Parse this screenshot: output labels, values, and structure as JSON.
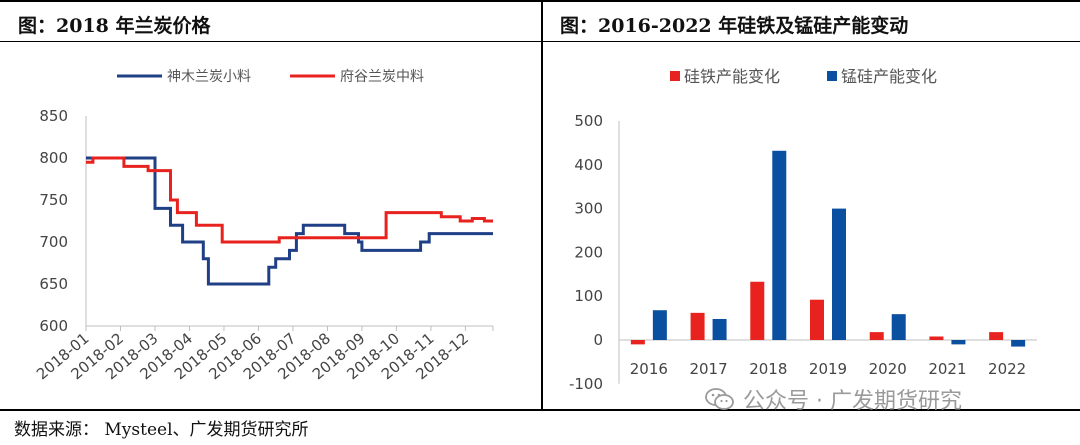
{
  "left_panel": {
    "title": "图：2018 年兰炭价格"
  },
  "right_panel": {
    "title": "图：2016-2022 年硅铁及锰硅产能变动"
  },
  "footer": {
    "source": "数据来源：  Mysteel、广发期货研究所"
  },
  "watermark": {
    "text": "公众号 · 广发期货研究",
    "icon": "wechat-icon"
  },
  "colors": {
    "blue": "#1f3f86",
    "red": "#e8231f",
    "bar_blue": "#0b4fa0",
    "bar_red": "#e8231f"
  },
  "chart_data": [
    {
      "type": "line",
      "title": "图：2018 年兰炭价格",
      "ylim": [
        600,
        850
      ],
      "yticks": [
        600,
        650,
        700,
        750,
        800,
        850
      ],
      "x_range": [
        0,
        11.8
      ],
      "categories": [
        "2018-01",
        "2018-02",
        "2018-03",
        "2018-04",
        "2018-05",
        "2018-06",
        "2018-07",
        "2018-08",
        "2018-09",
        "2018-10",
        "2018-11",
        "2018-12"
      ],
      "legend_position": "top",
      "grid": false,
      "series": [
        {
          "name": "神木兰炭小料",
          "color": "#1f3f86",
          "points": [
            [
              0,
              800
            ],
            [
              1.9,
              800
            ],
            [
              1.9,
              800
            ],
            [
              2.0,
              800
            ],
            [
              2.0,
              740
            ],
            [
              2.45,
              740
            ],
            [
              2.45,
              720
            ],
            [
              2.8,
              720
            ],
            [
              2.8,
              700
            ],
            [
              3.4,
              700
            ],
            [
              3.4,
              680
            ],
            [
              3.55,
              680
            ],
            [
              3.55,
              650
            ],
            [
              5.3,
              650
            ],
            [
              5.3,
              670
            ],
            [
              5.5,
              670
            ],
            [
              5.5,
              680
            ],
            [
              5.9,
              680
            ],
            [
              5.9,
              690
            ],
            [
              6.1,
              690
            ],
            [
              6.1,
              710
            ],
            [
              6.3,
              710
            ],
            [
              6.3,
              720
            ],
            [
              7.5,
              720
            ],
            [
              7.5,
              710
            ],
            [
              7.9,
              710
            ],
            [
              7.9,
              700
            ],
            [
              8.0,
              700
            ],
            [
              8.0,
              690
            ],
            [
              9.7,
              690
            ],
            [
              9.7,
              700
            ],
            [
              9.95,
              700
            ],
            [
              9.95,
              710
            ],
            [
              11.8,
              710
            ]
          ]
        },
        {
          "name": "府谷兰炭中料",
          "color": "#e8231f",
          "points": [
            [
              0,
              795
            ],
            [
              0.2,
              795
            ],
            [
              0.2,
              800
            ],
            [
              1.1,
              800
            ],
            [
              1.1,
              790
            ],
            [
              1.8,
              790
            ],
            [
              1.8,
              785
            ],
            [
              2.45,
              785
            ],
            [
              2.45,
              750
            ],
            [
              2.65,
              750
            ],
            [
              2.65,
              735
            ],
            [
              3.2,
              735
            ],
            [
              3.2,
              720
            ],
            [
              3.95,
              720
            ],
            [
              3.95,
              700
            ],
            [
              5.6,
              700
            ],
            [
              5.6,
              705
            ],
            [
              6.55,
              705
            ],
            [
              6.55,
              705
            ],
            [
              8.7,
              705
            ],
            [
              8.7,
              735
            ],
            [
              10.3,
              735
            ],
            [
              10.3,
              730
            ],
            [
              10.85,
              730
            ],
            [
              10.85,
              725
            ],
            [
              11.2,
              725
            ],
            [
              11.2,
              728
            ],
            [
              11.55,
              728
            ],
            [
              11.55,
              725
            ],
            [
              11.8,
              725
            ]
          ]
        }
      ]
    },
    {
      "type": "bar",
      "title": "图：2016-2022 年硅铁及锰硅产能变动",
      "categories": [
        "2016",
        "2017",
        "2018",
        "2019",
        "2020",
        "2021",
        "2022"
      ],
      "ylim": [
        -100,
        500
      ],
      "yticks": [
        -100,
        0,
        100,
        200,
        300,
        400,
        500
      ],
      "legend_position": "top",
      "grid": false,
      "series": [
        {
          "name": "硅铁产能变化",
          "color": "#e8231f",
          "values": [
            -10,
            62,
            133,
            92,
            18,
            8,
            18
          ]
        },
        {
          "name": "锰硅产能变化",
          "color": "#0b4fa0",
          "values": [
            68,
            48,
            432,
            300,
            59,
            -10,
            -15
          ]
        }
      ]
    }
  ]
}
